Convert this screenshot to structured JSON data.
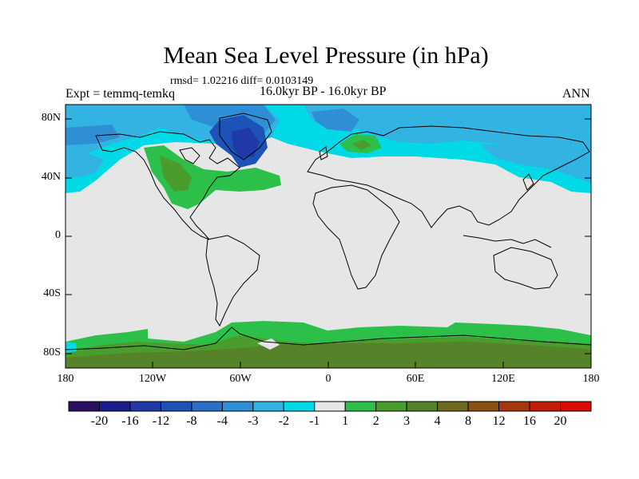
{
  "title": "Mean Sea Level Pressure (in hPa)",
  "stats_line": "rmsd= 1.02216 diff= 0.0103149",
  "period_line": "16.0kyr BP - 16.0kyr BP",
  "left_label": "Expt = temmq-temkq",
  "right_label": "ANN",
  "lat_labels": [
    "80N",
    "40N",
    "0",
    "40S",
    "80S"
  ],
  "lon_labels": [
    "180",
    "120W",
    "60W",
    "0",
    "60E",
    "120E",
    "180"
  ],
  "colorbar": {
    "labels": [
      "-20",
      "-16",
      "-12",
      "-8",
      "-4",
      "-3",
      "-2",
      "-1",
      "1",
      "2",
      "3",
      "4",
      "8",
      "12",
      "16",
      "20"
    ],
    "colors": [
      "#2b0f63",
      "#1c1c8e",
      "#1f3aa6",
      "#1d52b8",
      "#2a70c8",
      "#2f8fd6",
      "#33b3e2",
      "#00d9e6",
      "#e6e6e6",
      "#2cc04a",
      "#4a9c2c",
      "#56822a",
      "#6e6a20",
      "#8c4f14",
      "#a8370e",
      "#c21e0a",
      "#d80c04"
    ]
  },
  "map_colors": {
    "ocean_neutral": "#e6e6e6",
    "light_blue": "#00d9e6",
    "blue": "#33b3e2",
    "mid_blue": "#2f8fd6",
    "dark_blue": "#1d52b8",
    "green": "#2cc04a",
    "dark_green": "#4a9c2c",
    "olive": "#56822a",
    "coastline": "#000000"
  }
}
